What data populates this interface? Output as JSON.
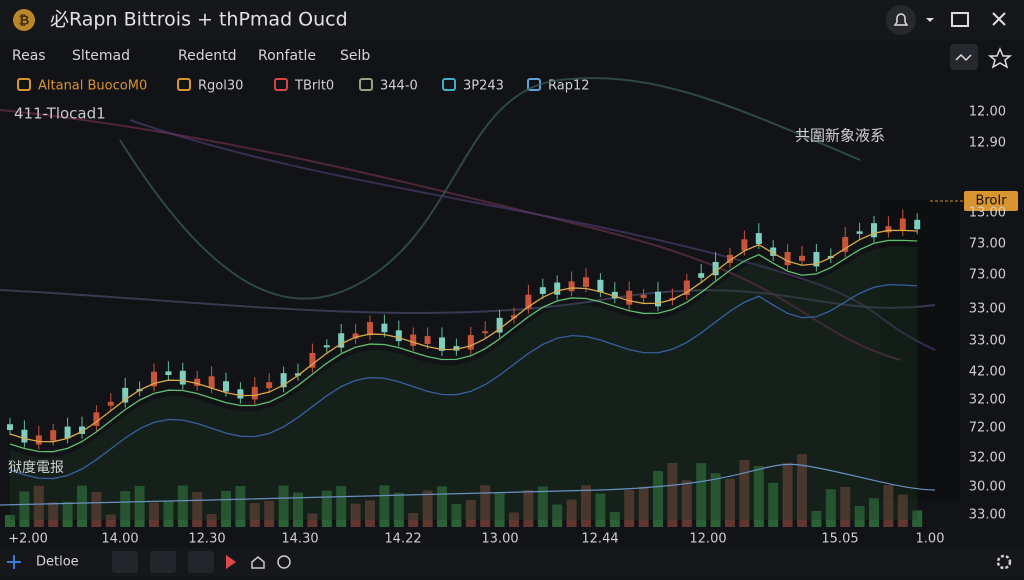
{
  "header": {
    "title": "必Rapn Bittrois + thPmad Oucd"
  },
  "menu": [
    "Reas",
    "Sltemad",
    "Redentd",
    "Ronfatle",
    "Selb"
  ],
  "indicators": [
    "Altanal BuocoM0",
    "Rgol30",
    "TBrlt0",
    "344-0",
    "3P243",
    "Rap12"
  ],
  "chart": {
    "overlay_label": "411-Tlocad1",
    "annotation": "共圍新象液系",
    "volume_label": "狱度電报",
    "price_tag": "BroIr",
    "y_labels": [
      "12.00",
      "12.90",
      "13.00",
      "73.00",
      "73.00",
      "33.00",
      "33.00",
      "42.00",
      "32.00",
      "72.00",
      "32.00",
      "30.00",
      "33.00"
    ],
    "x_labels": [
      "+2.00",
      "14.00",
      "12.30",
      "14.30",
      "14.22",
      "13.00",
      "12.44",
      "12.00",
      "15.05",
      "1.00"
    ]
  },
  "footer": {
    "tab": "Detloe"
  }
}
